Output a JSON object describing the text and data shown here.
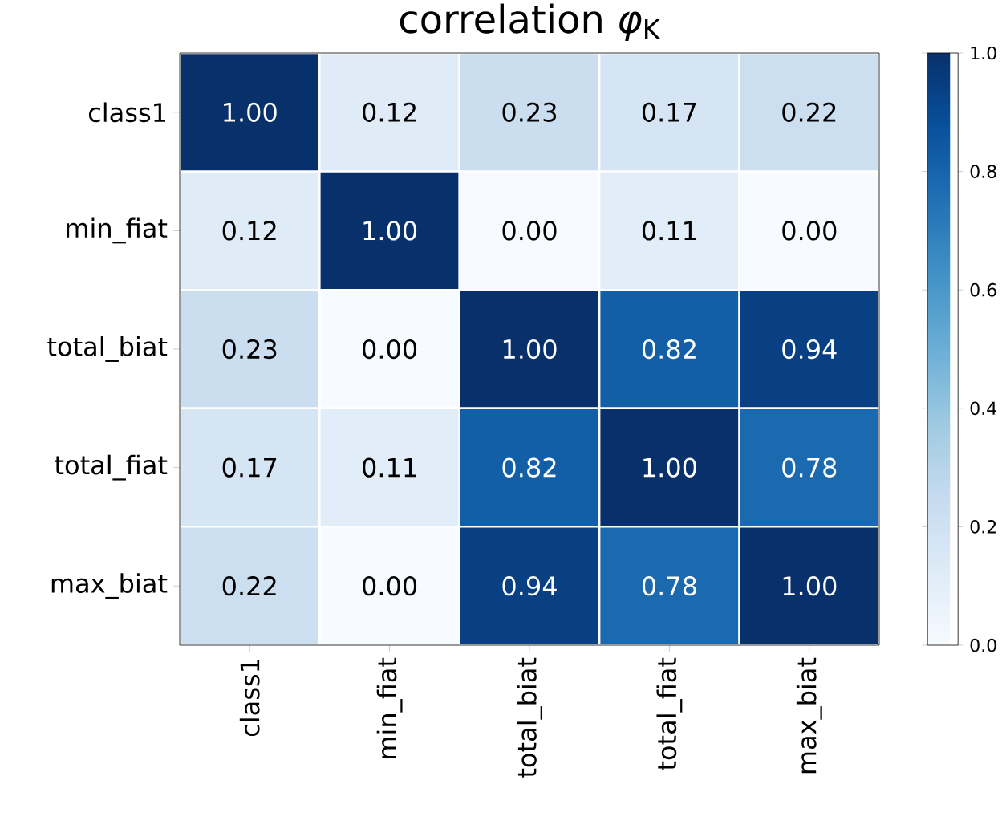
{
  "chart_data": {
    "type": "heatmap",
    "title": "correlation *φ*$_{K}$",
    "categories": [
      "class1",
      "min_fiat",
      "total_biat",
      "total_fiat",
      "max_biat"
    ],
    "y_categories": [
      "class1",
      "min_fiat",
      "total_biat",
      "total_fiat",
      "max_biat"
    ],
    "cells": [
      [
        1.0,
        0.12,
        0.23,
        0.17,
        0.22
      ],
      [
        0.12,
        1.0,
        0.0,
        0.11,
        0.0
      ],
      [
        0.23,
        0.0,
        1.0,
        0.82,
        0.94
      ],
      [
        0.17,
        0.11,
        0.82,
        1.0,
        0.78
      ],
      [
        0.22,
        0.0,
        0.94,
        0.78,
        1.0
      ]
    ],
    "cell_labels": [
      [
        "1.00",
        "0.12",
        "0.23",
        "0.17",
        "0.22"
      ],
      [
        "0.12",
        "1.00",
        "0.00",
        "0.11",
        "0.00"
      ],
      [
        "0.23",
        "0.00",
        "1.00",
        "0.82",
        "0.94"
      ],
      [
        "0.17",
        "0.11",
        "0.82",
        "1.00",
        "0.78"
      ],
      [
        "0.22",
        "0.00",
        "0.94",
        "0.78",
        "1.00"
      ]
    ],
    "clim": [
      0,
      1
    ],
    "cticks": [
      {
        "value": 0,
        "label": "0.0"
      },
      {
        "value": 0.2,
        "label": "0.2"
      },
      {
        "value": 0.4,
        "label": "0.4"
      },
      {
        "value": 0.6,
        "label": "0.6"
      },
      {
        "value": 0.8,
        "label": "0.8"
      },
      {
        "value": 1,
        "label": "1.0"
      }
    ]
  }
}
